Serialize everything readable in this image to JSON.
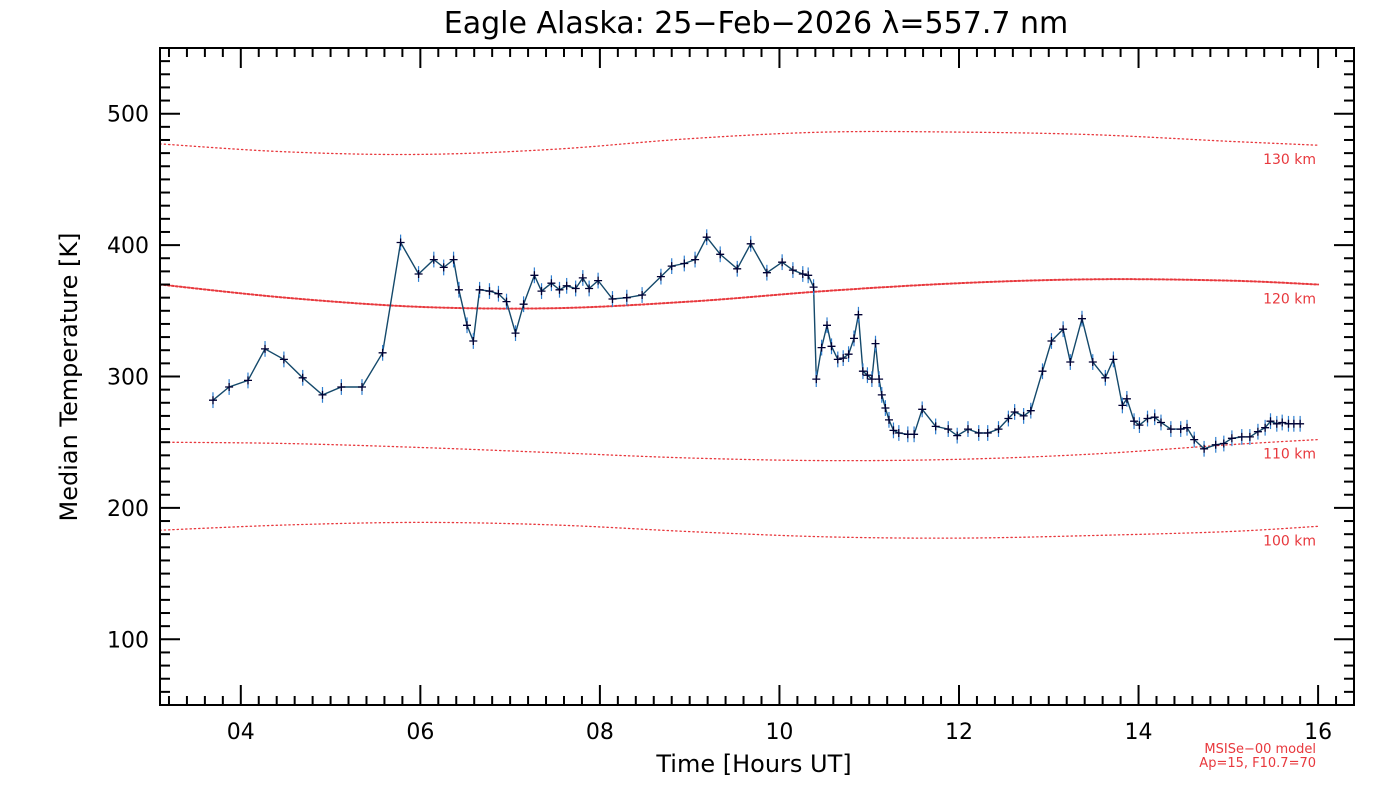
{
  "chart_data": {
    "type": "line",
    "title": "Eagle Alaska: 25−Feb−2026 λ=557.7 nm",
    "xlabel": "Time [Hours UT]",
    "ylabel": "Median Temperature [K]",
    "xlim": [
      3.1,
      16.4
    ],
    "ylim": [
      50,
      550
    ],
    "x_tick_labels": [
      "04",
      "06",
      "08",
      "10",
      "12",
      "14",
      "16"
    ],
    "x_tick_values": [
      4,
      6,
      8,
      10,
      12,
      14,
      16
    ],
    "y_tick_values": [
      100,
      200,
      300,
      400,
      500
    ],
    "colors": {
      "series": "#14496b",
      "markers": "#000033",
      "errorbars": "#2f7fd0",
      "model": "#e8383d",
      "axes": "#000000"
    },
    "series": [
      {
        "name": "Median Temperature",
        "points": [
          [
            3.69,
            282
          ],
          [
            3.87,
            292
          ],
          [
            4.08,
            297
          ],
          [
            4.27,
            321
          ],
          [
            4.48,
            313
          ],
          [
            4.69,
            299
          ],
          [
            4.91,
            286
          ],
          [
            5.12,
            292
          ],
          [
            5.35,
            292
          ],
          [
            5.58,
            318
          ],
          [
            5.78,
            402
          ],
          [
            5.98,
            378
          ],
          [
            6.15,
            389
          ],
          [
            6.26,
            383
          ],
          [
            6.37,
            389
          ],
          [
            6.43,
            366
          ],
          [
            6.52,
            339
          ],
          [
            6.59,
            327
          ],
          [
            6.66,
            366
          ],
          [
            6.77,
            365
          ],
          [
            6.87,
            363
          ],
          [
            6.96,
            357
          ],
          [
            7.06,
            333
          ],
          [
            7.15,
            355
          ],
          [
            7.27,
            377
          ],
          [
            7.35,
            365
          ],
          [
            7.46,
            371
          ],
          [
            7.55,
            366
          ],
          [
            7.63,
            369
          ],
          [
            7.73,
            367
          ],
          [
            7.81,
            375
          ],
          [
            7.88,
            367
          ],
          [
            7.98,
            373
          ],
          [
            8.14,
            359
          ],
          [
            8.3,
            360
          ],
          [
            8.47,
            362
          ],
          [
            8.68,
            376
          ],
          [
            8.8,
            384
          ],
          [
            8.94,
            386
          ],
          [
            9.06,
            389
          ],
          [
            9.19,
            406
          ],
          [
            9.34,
            393
          ],
          [
            9.53,
            382
          ],
          [
            9.68,
            401
          ],
          [
            9.86,
            379
          ],
          [
            10.03,
            387
          ],
          [
            10.15,
            381
          ],
          [
            10.26,
            378
          ],
          [
            10.32,
            377
          ],
          [
            10.38,
            368
          ],
          [
            10.41,
            298
          ],
          [
            10.47,
            322
          ],
          [
            10.53,
            339
          ],
          [
            10.58,
            323
          ],
          [
            10.65,
            313
          ],
          [
            10.71,
            314
          ],
          [
            10.77,
            317
          ],
          [
            10.83,
            329
          ],
          [
            10.88,
            347
          ],
          [
            10.93,
            304
          ],
          [
            10.98,
            301
          ],
          [
            11.03,
            298
          ],
          [
            11.07,
            325
          ],
          [
            11.11,
            298
          ],
          [
            11.14,
            286
          ],
          [
            11.18,
            276
          ],
          [
            11.22,
            267
          ],
          [
            11.27,
            259
          ],
          [
            11.33,
            257
          ],
          [
            11.43,
            256
          ],
          [
            11.5,
            256
          ],
          [
            11.59,
            275
          ],
          [
            11.74,
            262
          ],
          [
            11.88,
            260
          ],
          [
            11.98,
            255
          ],
          [
            12.1,
            260
          ],
          [
            12.22,
            257
          ],
          [
            12.32,
            257
          ],
          [
            12.44,
            260
          ],
          [
            12.55,
            268
          ],
          [
            12.62,
            273
          ],
          [
            12.72,
            270
          ],
          [
            12.8,
            274
          ],
          [
            12.93,
            304
          ],
          [
            13.03,
            327
          ],
          [
            13.16,
            336
          ],
          [
            13.24,
            311
          ],
          [
            13.37,
            344
          ],
          [
            13.49,
            311
          ],
          [
            13.63,
            299
          ],
          [
            13.72,
            313
          ],
          [
            13.82,
            278
          ],
          [
            13.87,
            283
          ],
          [
            13.95,
            266
          ],
          [
            14.01,
            263
          ],
          [
            14.1,
            268
          ],
          [
            14.18,
            269
          ],
          [
            14.25,
            265
          ],
          [
            14.36,
            260
          ],
          [
            14.47,
            260
          ],
          [
            14.54,
            261
          ],
          [
            14.62,
            252
          ],
          [
            14.73,
            245
          ],
          [
            14.86,
            248
          ],
          [
            14.95,
            249
          ],
          [
            15.04,
            253
          ],
          [
            15.15,
            254
          ],
          [
            15.24,
            254
          ],
          [
            15.33,
            258
          ],
          [
            15.41,
            261
          ],
          [
            15.47,
            266
          ],
          [
            15.54,
            264
          ],
          [
            15.6,
            265
          ],
          [
            15.67,
            264
          ],
          [
            15.73,
            264
          ],
          [
            15.8,
            264
          ]
        ],
        "errorbar": 6
      }
    ],
    "model_curves": [
      {
        "label": "130 km",
        "x": [
          3.1,
          4.5,
          6.0,
          7.5,
          9.0,
          10.5,
          12.0,
          13.5,
          15.0,
          16.0
        ],
        "y": [
          477,
          471,
          469,
          473,
          481,
          486,
          486,
          484,
          479,
          476
        ],
        "dense": false
      },
      {
        "label": "120 km",
        "x": [
          3.1,
          4.5,
          6.0,
          7.5,
          9.0,
          10.5,
          12.0,
          13.5,
          15.0,
          16.0
        ],
        "y": [
          370,
          360,
          353,
          352,
          357,
          365,
          371,
          374,
          373,
          370
        ],
        "dense": true
      },
      {
        "label": "110 km",
        "x": [
          3.1,
          4.5,
          6.0,
          7.5,
          9.0,
          10.5,
          12.0,
          13.5,
          15.0,
          16.0
        ],
        "y": [
          250,
          249,
          246,
          242,
          238,
          236,
          237,
          241,
          248,
          252
        ],
        "dense": false
      },
      {
        "label": "100 km",
        "x": [
          3.1,
          4.5,
          6.0,
          7.5,
          9.0,
          10.5,
          12.0,
          13.5,
          15.0,
          16.0
        ],
        "y": [
          183,
          187,
          189,
          187,
          182,
          178,
          177,
          179,
          182,
          186
        ],
        "dense": false
      }
    ],
    "model_note": [
      "MSISe−00 model",
      "Ap=15, F10.7=70"
    ]
  }
}
